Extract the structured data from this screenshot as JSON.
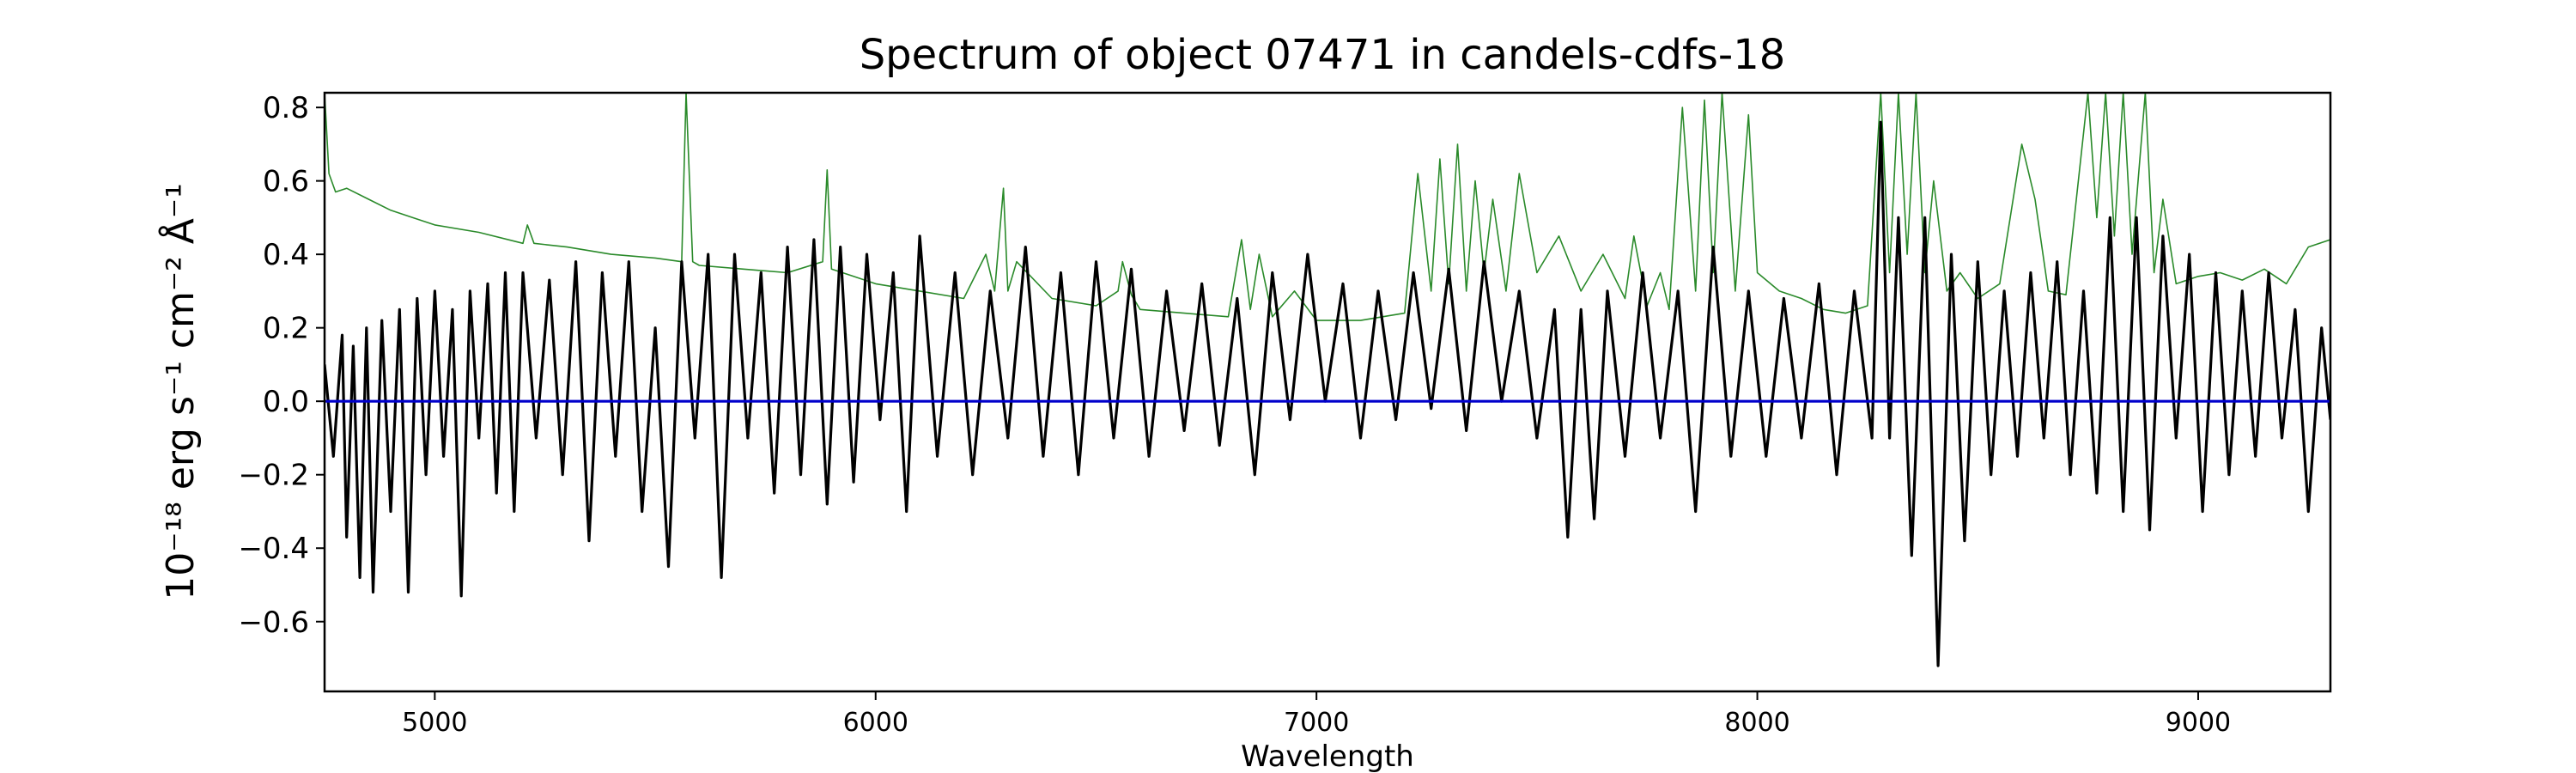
{
  "chart_data": {
    "type": "line",
    "title": "Spectrum of object 07471 in candels-cdfs-18",
    "xlabel": "Wavelength",
    "ylabel": "10⁻¹⁸ erg s⁻¹ cm⁻² Å⁻¹",
    "xlim": [
      4750,
      9300
    ],
    "ylim": [
      -0.79,
      0.84
    ],
    "x_ticks": [
      5000,
      6000,
      7000,
      8000,
      9000
    ],
    "y_ticks": [
      -0.6,
      -0.4,
      -0.2,
      0.0,
      0.2,
      0.4,
      0.6,
      0.8
    ],
    "y_tick_labels": [
      "−0.6",
      "−0.4",
      "−0.2",
      "0.0",
      "0.2",
      "0.4",
      "0.6",
      "0.8"
    ],
    "grid": false,
    "series": [
      {
        "color": "#2a8a2a",
        "stroke": "thin",
        "x": [
          4750,
          4760,
          4775,
          4800,
          4850,
          4900,
          4950,
          5000,
          5100,
          5200,
          5210,
          5225,
          5300,
          5400,
          5500,
          5560,
          5570,
          5585,
          5600,
          5700,
          5800,
          5880,
          5890,
          5900,
          5950,
          6000,
          6100,
          6200,
          6250,
          6270,
          6290,
          6300,
          6320,
          6400,
          6500,
          6550,
          6560,
          6580,
          6600,
          6700,
          6800,
          6830,
          6850,
          6870,
          6900,
          6950,
          7000,
          7100,
          7200,
          7230,
          7260,
          7280,
          7300,
          7320,
          7340,
          7360,
          7380,
          7400,
          7430,
          7460,
          7500,
          7550,
          7600,
          7650,
          7700,
          7720,
          7750,
          7780,
          7800,
          7830,
          7860,
          7880,
          7900,
          7920,
          7950,
          7980,
          8000,
          8050,
          8100,
          8150,
          8200,
          8250,
          8280,
          8300,
          8320,
          8340,
          8360,
          8380,
          8400,
          8430,
          8460,
          8500,
          8550,
          8600,
          8630,
          8660,
          8700,
          8750,
          8770,
          8790,
          8810,
          8830,
          8850,
          8880,
          8900,
          8920,
          8950,
          9000,
          9050,
          9100,
          9150,
          9200,
          9250,
          9300
        ],
        "y": [
          0.84,
          0.62,
          0.57,
          0.58,
          0.55,
          0.52,
          0.5,
          0.48,
          0.46,
          0.43,
          0.48,
          0.43,
          0.42,
          0.4,
          0.39,
          0.38,
          0.84,
          0.38,
          0.37,
          0.36,
          0.35,
          0.38,
          0.63,
          0.36,
          0.34,
          0.32,
          0.3,
          0.28,
          0.4,
          0.3,
          0.58,
          0.3,
          0.38,
          0.28,
          0.26,
          0.3,
          0.38,
          0.29,
          0.25,
          0.24,
          0.23,
          0.44,
          0.25,
          0.4,
          0.23,
          0.3,
          0.22,
          0.22,
          0.24,
          0.62,
          0.3,
          0.66,
          0.32,
          0.7,
          0.3,
          0.6,
          0.35,
          0.55,
          0.3,
          0.62,
          0.35,
          0.45,
          0.3,
          0.4,
          0.28,
          0.45,
          0.26,
          0.35,
          0.25,
          0.8,
          0.3,
          0.82,
          0.35,
          0.84,
          0.3,
          0.78,
          0.35,
          0.3,
          0.28,
          0.25,
          0.24,
          0.26,
          0.84,
          0.35,
          0.84,
          0.4,
          0.84,
          0.35,
          0.6,
          0.3,
          0.35,
          0.28,
          0.32,
          0.7,
          0.55,
          0.3,
          0.29,
          0.84,
          0.5,
          0.84,
          0.45,
          0.84,
          0.4,
          0.84,
          0.35,
          0.55,
          0.32,
          0.34,
          0.35,
          0.33,
          0.36,
          0.32,
          0.42,
          0.44
        ]
      },
      {
        "color": "#000000",
        "stroke": "thick",
        "x": [
          4750,
          4770,
          4790,
          4800,
          4815,
          4830,
          4845,
          4860,
          4880,
          4900,
          4920,
          4940,
          4960,
          4980,
          5000,
          5020,
          5040,
          5060,
          5080,
          5100,
          5120,
          5140,
          5160,
          5180,
          5200,
          5230,
          5260,
          5290,
          5320,
          5350,
          5380,
          5410,
          5440,
          5470,
          5500,
          5530,
          5560,
          5590,
          5620,
          5650,
          5680,
          5710,
          5740,
          5770,
          5800,
          5830,
          5860,
          5890,
          5920,
          5950,
          5980,
          6010,
          6040,
          6070,
          6100,
          6140,
          6180,
          6220,
          6260,
          6300,
          6340,
          6380,
          6420,
          6460,
          6500,
          6540,
          6580,
          6620,
          6660,
          6700,
          6740,
          6780,
          6820,
          6860,
          6900,
          6940,
          6980,
          7020,
          7060,
          7100,
          7140,
          7180,
          7220,
          7260,
          7300,
          7340,
          7380,
          7420,
          7460,
          7500,
          7540,
          7570,
          7600,
          7630,
          7660,
          7700,
          7740,
          7780,
          7820,
          7860,
          7900,
          7940,
          7980,
          8020,
          8060,
          8100,
          8140,
          8180,
          8220,
          8260,
          8280,
          8300,
          8320,
          8350,
          8380,
          8410,
          8440,
          8470,
          8500,
          8530,
          8560,
          8590,
          8620,
          8650,
          8680,
          8710,
          8740,
          8770,
          8800,
          8830,
          8860,
          8890,
          8920,
          8950,
          8980,
          9010,
          9040,
          9070,
          9100,
          9130,
          9160,
          9190,
          9220,
          9250,
          9280,
          9300
        ],
        "y": [
          0.1,
          -0.15,
          0.18,
          -0.37,
          0.15,
          -0.48,
          0.2,
          -0.52,
          0.22,
          -0.3,
          0.25,
          -0.52,
          0.28,
          -0.2,
          0.3,
          -0.15,
          0.25,
          -0.53,
          0.3,
          -0.1,
          0.32,
          -0.25,
          0.35,
          -0.3,
          0.35,
          -0.1,
          0.33,
          -0.2,
          0.38,
          -0.38,
          0.35,
          -0.15,
          0.38,
          -0.3,
          0.2,
          -0.45,
          0.38,
          -0.1,
          0.4,
          -0.48,
          0.4,
          -0.1,
          0.35,
          -0.25,
          0.42,
          -0.2,
          0.44,
          -0.28,
          0.42,
          -0.22,
          0.4,
          -0.05,
          0.35,
          -0.3,
          0.45,
          -0.15,
          0.35,
          -0.2,
          0.3,
          -0.1,
          0.42,
          -0.15,
          0.35,
          -0.2,
          0.38,
          -0.1,
          0.36,
          -0.15,
          0.3,
          -0.08,
          0.32,
          -0.12,
          0.28,
          -0.2,
          0.35,
          -0.05,
          0.4,
          0.0,
          0.32,
          -0.1,
          0.3,
          -0.05,
          0.35,
          -0.02,
          0.36,
          -0.08,
          0.38,
          0.0,
          0.3,
          -0.1,
          0.25,
          -0.37,
          0.25,
          -0.32,
          0.3,
          -0.15,
          0.35,
          -0.1,
          0.3,
          -0.3,
          0.42,
          -0.15,
          0.3,
          -0.15,
          0.28,
          -0.1,
          0.32,
          -0.2,
          0.3,
          -0.1,
          0.76,
          -0.1,
          0.5,
          -0.42,
          0.5,
          -0.72,
          0.4,
          -0.38,
          0.38,
          -0.2,
          0.3,
          -0.15,
          0.35,
          -0.1,
          0.38,
          -0.2,
          0.3,
          -0.25,
          0.5,
          -0.3,
          0.5,
          -0.35,
          0.45,
          -0.1,
          0.4,
          -0.3,
          0.35,
          -0.2,
          0.3,
          -0.15,
          0.35,
          -0.1,
          0.25,
          -0.3,
          0.2,
          -0.05
        ]
      },
      {
        "color": "#0000cc",
        "stroke": "thick",
        "x": [
          4750,
          9300
        ],
        "y": [
          0.0,
          0.0
        ]
      }
    ]
  }
}
